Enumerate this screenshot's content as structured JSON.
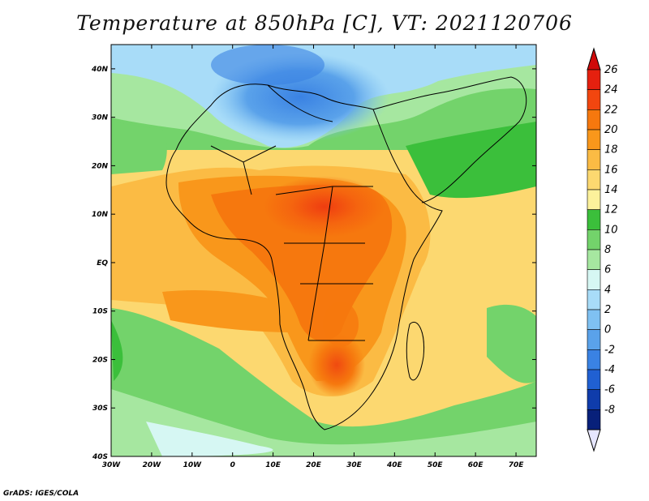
{
  "title": "Temperature at 850hPa [C], VT: 2021120706",
  "credit": "GrADS: IGES/COLA",
  "map": {
    "lon_range": [
      -30,
      75
    ],
    "lat_range": [
      -40,
      45
    ],
    "lon_ticks": [
      {
        "value": -30,
        "label": "30W"
      },
      {
        "value": -20,
        "label": "20W"
      },
      {
        "value": -10,
        "label": "10W"
      },
      {
        "value": 0,
        "label": "0"
      },
      {
        "value": 10,
        "label": "10E"
      },
      {
        "value": 20,
        "label": "20E"
      },
      {
        "value": 30,
        "label": "30E"
      },
      {
        "value": 40,
        "label": "40E"
      },
      {
        "value": 50,
        "label": "50E"
      },
      {
        "value": 60,
        "label": "60E"
      },
      {
        "value": 70,
        "label": "70E"
      }
    ],
    "lat_ticks": [
      {
        "value": 40,
        "label": "40N"
      },
      {
        "value": 30,
        "label": "30N"
      },
      {
        "value": 20,
        "label": "20N"
      },
      {
        "value": 10,
        "label": "10N"
      },
      {
        "value": 0,
        "label": "EQ"
      },
      {
        "value": -10,
        "label": "10S"
      },
      {
        "value": -20,
        "label": "20S"
      },
      {
        "value": -30,
        "label": "30S"
      },
      {
        "value": -40,
        "label": "40S"
      }
    ]
  },
  "colorbar": {
    "levels": [
      {
        "label": "26",
        "color": "#e5200f"
      },
      {
        "label": "24",
        "color": "#f2460f"
      },
      {
        "label": "22",
        "color": "#f6780e"
      },
      {
        "label": "20",
        "color": "#f9971b"
      },
      {
        "label": "18",
        "color": "#fbbb44"
      },
      {
        "label": "16",
        "color": "#fcd870"
      },
      {
        "label": "14",
        "color": "#fcf19b"
      },
      {
        "label": "12",
        "color": "#3bbf3b"
      },
      {
        "label": "10",
        "color": "#73d36b"
      },
      {
        "label": "8",
        "color": "#a6e7a0"
      },
      {
        "label": "6",
        "color": "#d6f7f3"
      },
      {
        "label": "4",
        "color": "#a8dcf8"
      },
      {
        "label": "2",
        "color": "#7fc1f2"
      },
      {
        "label": "0",
        "color": "#5aa2ea"
      },
      {
        "label": "-2",
        "color": "#3a82e3"
      },
      {
        "label": "-4",
        "color": "#2060d2"
      },
      {
        "label": "-6",
        "color": "#0f3cab"
      },
      {
        "label": "-8",
        "color": "#08207a"
      }
    ],
    "top_color": "#d00a0a",
    "bottom_color": "#e6e6ff"
  }
}
